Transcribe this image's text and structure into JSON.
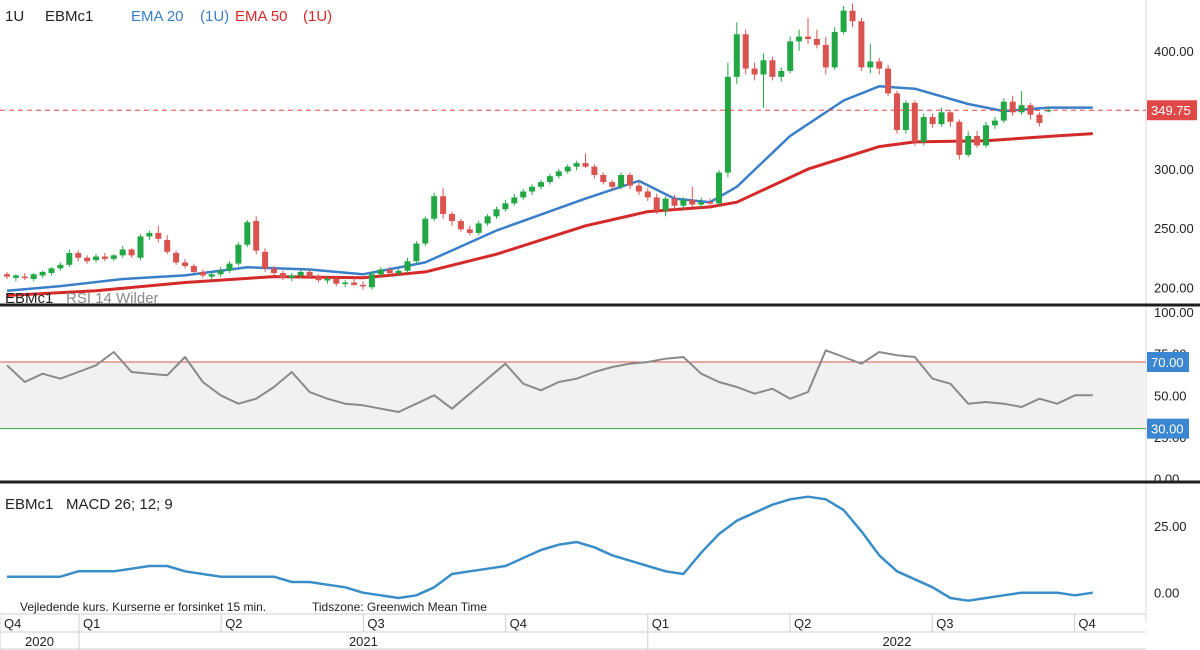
{
  "colors": {
    "bull": "#22a745",
    "bear": "#d9534f",
    "ema20": "#3a7fc9",
    "ema50": "#d42a2a",
    "rsi": "#8a8a8a",
    "macd": "#3a8ec7",
    "overbought": "#d65a4a",
    "oversold": "#3aa94a",
    "last_price_badge": "#e04848",
    "level_badge": "#3a86d0"
  },
  "chart_data": [
    {
      "type": "candlestick",
      "legend": {
        "interval": "1U",
        "symbol": "EBMc1",
        "ema20": "EMA 20",
        "ema20_interval": "(1U)",
        "ema50": "EMA 50",
        "ema50_interval": "(1U)"
      },
      "y_ticks": [
        "400.00",
        "350.00",
        "300.00",
        "250.00",
        "200.00"
      ],
      "ylim": [
        185,
        443
      ],
      "last_price": 349.75,
      "last_price_label": "349.75",
      "candles": [
        {
          "o": 211,
          "h": 213,
          "l": 207,
          "c": 209
        },
        {
          "o": 208,
          "h": 211,
          "l": 205,
          "c": 210
        },
        {
          "o": 209,
          "h": 212,
          "l": 206,
          "c": 208
        },
        {
          "o": 207,
          "h": 212,
          "l": 205,
          "c": 211
        },
        {
          "o": 210,
          "h": 214,
          "l": 208,
          "c": 213
        },
        {
          "o": 212,
          "h": 217,
          "l": 210,
          "c": 216
        },
        {
          "o": 216,
          "h": 221,
          "l": 214,
          "c": 219
        },
        {
          "o": 219,
          "h": 232,
          "l": 217,
          "c": 229
        },
        {
          "o": 229,
          "h": 231,
          "l": 222,
          "c": 225
        },
        {
          "o": 225,
          "h": 227,
          "l": 220,
          "c": 222
        },
        {
          "o": 223,
          "h": 228,
          "l": 221,
          "c": 226
        },
        {
          "o": 226,
          "h": 229,
          "l": 222,
          "c": 224
        },
        {
          "o": 224,
          "h": 228,
          "l": 222,
          "c": 227
        },
        {
          "o": 227,
          "h": 235,
          "l": 225,
          "c": 232
        },
        {
          "o": 232,
          "h": 233,
          "l": 225,
          "c": 227
        },
        {
          "o": 225,
          "h": 245,
          "l": 223,
          "c": 243
        },
        {
          "o": 243,
          "h": 248,
          "l": 240,
          "c": 246
        },
        {
          "o": 246,
          "h": 252,
          "l": 238,
          "c": 241
        },
        {
          "o": 240,
          "h": 244,
          "l": 228,
          "c": 230
        },
        {
          "o": 229,
          "h": 231,
          "l": 219,
          "c": 221
        },
        {
          "o": 221,
          "h": 224,
          "l": 216,
          "c": 218
        },
        {
          "o": 218,
          "h": 220,
          "l": 212,
          "c": 213
        },
        {
          "o": 213,
          "h": 215,
          "l": 208,
          "c": 210
        },
        {
          "o": 209,
          "h": 213,
          "l": 206,
          "c": 211
        },
        {
          "o": 211,
          "h": 217,
          "l": 209,
          "c": 214
        },
        {
          "o": 214,
          "h": 222,
          "l": 212,
          "c": 220
        },
        {
          "o": 220,
          "h": 238,
          "l": 218,
          "c": 236
        },
        {
          "o": 236,
          "h": 257,
          "l": 234,
          "c": 255
        },
        {
          "o": 256,
          "h": 260,
          "l": 228,
          "c": 231
        },
        {
          "o": 230,
          "h": 233,
          "l": 213,
          "c": 216
        },
        {
          "o": 216,
          "h": 218,
          "l": 210,
          "c": 212
        },
        {
          "o": 212,
          "h": 214,
          "l": 206,
          "c": 208
        },
        {
          "o": 208,
          "h": 212,
          "l": 205,
          "c": 210
        },
        {
          "o": 210,
          "h": 215,
          "l": 208,
          "c": 213
        },
        {
          "o": 213,
          "h": 215,
          "l": 207,
          "c": 209
        },
        {
          "o": 209,
          "h": 211,
          "l": 204,
          "c": 206
        },
        {
          "o": 206,
          "h": 209,
          "l": 203,
          "c": 207
        },
        {
          "o": 207,
          "h": 209,
          "l": 201,
          "c": 203
        },
        {
          "o": 203,
          "h": 206,
          "l": 200,
          "c": 204
        },
        {
          "o": 204,
          "h": 208,
          "l": 201,
          "c": 202
        },
        {
          "o": 202,
          "h": 205,
          "l": 198,
          "c": 201
        },
        {
          "o": 200,
          "h": 213,
          "l": 198,
          "c": 211
        },
        {
          "o": 211,
          "h": 217,
          "l": 209,
          "c": 215
        },
        {
          "o": 215,
          "h": 217,
          "l": 210,
          "c": 212
        },
        {
          "o": 212,
          "h": 216,
          "l": 210,
          "c": 214
        },
        {
          "o": 214,
          "h": 225,
          "l": 212,
          "c": 222
        },
        {
          "o": 222,
          "h": 239,
          "l": 220,
          "c": 237
        },
        {
          "o": 237,
          "h": 260,
          "l": 235,
          "c": 258
        },
        {
          "o": 258,
          "h": 280,
          "l": 256,
          "c": 277
        },
        {
          "o": 277,
          "h": 284,
          "l": 258,
          "c": 262
        },
        {
          "o": 262,
          "h": 264,
          "l": 252,
          "c": 256
        },
        {
          "o": 256,
          "h": 258,
          "l": 247,
          "c": 249
        },
        {
          "o": 249,
          "h": 252,
          "l": 244,
          "c": 246
        },
        {
          "o": 246,
          "h": 256,
          "l": 244,
          "c": 254
        },
        {
          "o": 254,
          "h": 262,
          "l": 252,
          "c": 260
        },
        {
          "o": 260,
          "h": 268,
          "l": 258,
          "c": 266
        },
        {
          "o": 266,
          "h": 274,
          "l": 264,
          "c": 271
        },
        {
          "o": 271,
          "h": 279,
          "l": 269,
          "c": 276
        },
        {
          "o": 276,
          "h": 283,
          "l": 274,
          "c": 281
        },
        {
          "o": 281,
          "h": 287,
          "l": 278,
          "c": 285
        },
        {
          "o": 285,
          "h": 291,
          "l": 283,
          "c": 289
        },
        {
          "o": 289,
          "h": 296,
          "l": 287,
          "c": 294
        },
        {
          "o": 294,
          "h": 300,
          "l": 292,
          "c": 298
        },
        {
          "o": 298,
          "h": 304,
          "l": 296,
          "c": 302
        },
        {
          "o": 302,
          "h": 307,
          "l": 299,
          "c": 305
        },
        {
          "o": 305,
          "h": 313,
          "l": 301,
          "c": 302
        },
        {
          "o": 302,
          "h": 304,
          "l": 292,
          "c": 295
        },
        {
          "o": 295,
          "h": 297,
          "l": 287,
          "c": 289
        },
        {
          "o": 289,
          "h": 291,
          "l": 282,
          "c": 285
        },
        {
          "o": 285,
          "h": 297,
          "l": 283,
          "c": 295
        },
        {
          "o": 295,
          "h": 297,
          "l": 283,
          "c": 286
        },
        {
          "o": 286,
          "h": 289,
          "l": 278,
          "c": 281
        },
        {
          "o": 281,
          "h": 284,
          "l": 273,
          "c": 276
        },
        {
          "o": 276,
          "h": 279,
          "l": 262,
          "c": 265
        },
        {
          "o": 265,
          "h": 277,
          "l": 260,
          "c": 275
        },
        {
          "o": 275,
          "h": 278,
          "l": 265,
          "c": 269
        },
        {
          "o": 269,
          "h": 276,
          "l": 266,
          "c": 274
        },
        {
          "o": 274,
          "h": 285,
          "l": 268,
          "c": 270
        },
        {
          "o": 270,
          "h": 276,
          "l": 267,
          "c": 272
        },
        {
          "o": 272,
          "h": 275,
          "l": 268,
          "c": 271
        },
        {
          "o": 271,
          "h": 299,
          "l": 269,
          "c": 297
        },
        {
          "o": 297,
          "h": 390,
          "l": 293,
          "c": 378
        },
        {
          "o": 378,
          "h": 424,
          "l": 372,
          "c": 414
        },
        {
          "o": 414,
          "h": 418,
          "l": 380,
          "c": 385
        },
        {
          "o": 385,
          "h": 390,
          "l": 375,
          "c": 380
        },
        {
          "o": 380,
          "h": 398,
          "l": 352,
          "c": 392
        },
        {
          "o": 392,
          "h": 395,
          "l": 375,
          "c": 378
        },
        {
          "o": 378,
          "h": 386,
          "l": 374,
          "c": 383
        },
        {
          "o": 383,
          "h": 412,
          "l": 381,
          "c": 408
        },
        {
          "o": 408,
          "h": 418,
          "l": 400,
          "c": 412
        },
        {
          "o": 412,
          "h": 428,
          "l": 406,
          "c": 410
        },
        {
          "o": 410,
          "h": 418,
          "l": 402,
          "c": 405
        },
        {
          "o": 405,
          "h": 412,
          "l": 380,
          "c": 386
        },
        {
          "o": 386,
          "h": 420,
          "l": 384,
          "c": 416
        },
        {
          "o": 416,
          "h": 438,
          "l": 414,
          "c": 434
        },
        {
          "o": 434,
          "h": 440,
          "l": 420,
          "c": 425
        },
        {
          "o": 425,
          "h": 428,
          "l": 383,
          "c": 386
        },
        {
          "o": 386,
          "h": 406,
          "l": 381,
          "c": 391
        },
        {
          "o": 391,
          "h": 394,
          "l": 380,
          "c": 385
        },
        {
          "o": 385,
          "h": 388,
          "l": 362,
          "c": 364
        },
        {
          "o": 364,
          "h": 366,
          "l": 330,
          "c": 333
        },
        {
          "o": 333,
          "h": 358,
          "l": 330,
          "c": 356
        },
        {
          "o": 356,
          "h": 358,
          "l": 320,
          "c": 323
        },
        {
          "o": 323,
          "h": 347,
          "l": 320,
          "c": 344
        },
        {
          "o": 344,
          "h": 347,
          "l": 335,
          "c": 338
        },
        {
          "o": 338,
          "h": 352,
          "l": 336,
          "c": 348
        },
        {
          "o": 348,
          "h": 350,
          "l": 336,
          "c": 340
        },
        {
          "o": 340,
          "h": 342,
          "l": 308,
          "c": 312
        },
        {
          "o": 312,
          "h": 332,
          "l": 310,
          "c": 328
        },
        {
          "o": 328,
          "h": 332,
          "l": 318,
          "c": 320
        },
        {
          "o": 320,
          "h": 340,
          "l": 318,
          "c": 337
        },
        {
          "o": 337,
          "h": 344,
          "l": 334,
          "c": 341
        },
        {
          "o": 341,
          "h": 360,
          "l": 339,
          "c": 357
        },
        {
          "o": 357,
          "h": 362,
          "l": 345,
          "c": 348
        },
        {
          "o": 348,
          "h": 366,
          "l": 346,
          "c": 354
        },
        {
          "o": 354,
          "h": 356,
          "l": 342,
          "c": 346
        },
        {
          "o": 346,
          "h": 348,
          "l": 336,
          "c": 339
        },
        {
          "o": 350,
          "h": 353,
          "l": 348,
          "c": 350
        }
      ],
      "ema20": [
        [
          0,
          197
        ],
        [
          6,
          201
        ],
        [
          13,
          207
        ],
        [
          20,
          210
        ],
        [
          27,
          217
        ],
        [
          34,
          215
        ],
        [
          40,
          211
        ],
        [
          47,
          221
        ],
        [
          55,
          248
        ],
        [
          65,
          275
        ],
        [
          71,
          290
        ],
        [
          75,
          275
        ],
        [
          79,
          272
        ],
        [
          82,
          285
        ],
        [
          88,
          328
        ],
        [
          94,
          358
        ],
        [
          98,
          370
        ],
        [
          102,
          368
        ],
        [
          108,
          355
        ],
        [
          112,
          349
        ],
        [
          117,
          352
        ],
        [
          122,
          352
        ]
      ],
      "ema50": [
        [
          0,
          193
        ],
        [
          10,
          197
        ],
        [
          20,
          204
        ],
        [
          30,
          209
        ],
        [
          40,
          208
        ],
        [
          47,
          213
        ],
        [
          55,
          228
        ],
        [
          65,
          252
        ],
        [
          72,
          264
        ],
        [
          79,
          268
        ],
        [
          82,
          272
        ],
        [
          90,
          300
        ],
        [
          98,
          319
        ],
        [
          102,
          323
        ],
        [
          110,
          324
        ],
        [
          118,
          328
        ],
        [
          122,
          330
        ]
      ]
    },
    {
      "type": "line",
      "legend": {
        "symbol": "EBMc1",
        "indicator": "RSI 14 Wilder"
      },
      "y_ticks": [
        "100.00",
        "75.00",
        "50.00",
        "25.00",
        "0.00"
      ],
      "ylim": [
        -2,
        103
      ],
      "overbought": 70,
      "overbought_label": "70.00",
      "oversold": 30,
      "oversold_label": "30.00",
      "x": [
        0,
        2,
        4,
        6,
        8,
        10,
        12,
        14,
        16,
        18,
        20,
        22,
        24,
        26,
        28,
        30,
        32,
        34,
        36,
        38,
        40,
        42,
        44,
        46,
        48,
        50,
        52,
        54,
        56,
        58,
        60,
        62,
        64,
        66,
        68,
        70,
        72,
        74,
        76,
        78,
        80,
        82,
        84,
        86,
        88,
        90,
        92,
        94,
        96,
        98,
        100,
        102,
        104,
        106,
        108,
        110,
        112,
        114,
        116,
        118,
        120,
        122
      ],
      "values": [
        68,
        58,
        63,
        60,
        64,
        68,
        76,
        64,
        63,
        62,
        73,
        58,
        50,
        45,
        48,
        55,
        64,
        52,
        48,
        45,
        44,
        42,
        40,
        45,
        50,
        42,
        51,
        60,
        69,
        57,
        53,
        58,
        60,
        64,
        67,
        69,
        70,
        72,
        73,
        63,
        58,
        55,
        51,
        54,
        48,
        52,
        77,
        73,
        69,
        76,
        74,
        73,
        60,
        57,
        45,
        46,
        45,
        43,
        48,
        45,
        50,
        50
      ]
    },
    {
      "type": "line",
      "legend": {
        "symbol": "EBMc1",
        "indicator": "MACD 26; 12; 9"
      },
      "y_ticks": [
        "25.00",
        "0.00"
      ],
      "ylim": [
        -8,
        40
      ],
      "x": [
        0,
        2,
        4,
        6,
        8,
        10,
        12,
        14,
        16,
        18,
        20,
        22,
        24,
        26,
        28,
        30,
        32,
        34,
        36,
        38,
        40,
        42,
        44,
        46,
        48,
        50,
        52,
        54,
        56,
        58,
        60,
        62,
        64,
        66,
        68,
        70,
        72,
        74,
        76,
        78,
        80,
        82,
        84,
        86,
        88,
        90,
        92,
        94,
        96,
        98,
        100,
        102,
        104,
        106,
        108,
        110,
        112,
        114,
        116,
        118,
        120,
        122
      ],
      "values": [
        6,
        6,
        6,
        6,
        8,
        8,
        8,
        9,
        10,
        10,
        8,
        7,
        6,
        6,
        6,
        6,
        4,
        4,
        3,
        2,
        0,
        -1,
        -2,
        -1,
        2,
        7,
        8,
        9,
        10,
        13,
        16,
        18,
        19,
        17,
        14,
        12,
        10,
        8,
        7,
        15,
        22,
        27,
        30,
        33,
        35,
        36,
        35,
        31,
        23,
        14,
        8,
        5,
        2,
        -2,
        -3,
        -2,
        -1,
        0,
        0,
        0,
        -1,
        0
      ]
    }
  ],
  "footer": {
    "disclaimer": "Vejledende kurs. Kurserne er forsinket 15 min.",
    "timezone": "Tidszone: Greenwich Mean Time"
  },
  "x_axis": {
    "quarters": [
      {
        "label": "Q4",
        "x": 0
      },
      {
        "label": "Q1",
        "x": 10
      },
      {
        "label": "Q2",
        "x": 28
      },
      {
        "label": "Q3",
        "x": 46
      },
      {
        "label": "Q4",
        "x": 64
      },
      {
        "label": "Q1",
        "x": 82
      },
      {
        "label": "Q2",
        "x": 100
      },
      {
        "label": "Q3",
        "x": 118
      },
      {
        "label": "Q4",
        "x": 136
      }
    ],
    "years": [
      {
        "label": "2020",
        "start": 0,
        "end": 10
      },
      {
        "label": "2021",
        "start": 10,
        "end": 82
      },
      {
        "label": "2022",
        "start": 82,
        "end": 154
      }
    ]
  }
}
